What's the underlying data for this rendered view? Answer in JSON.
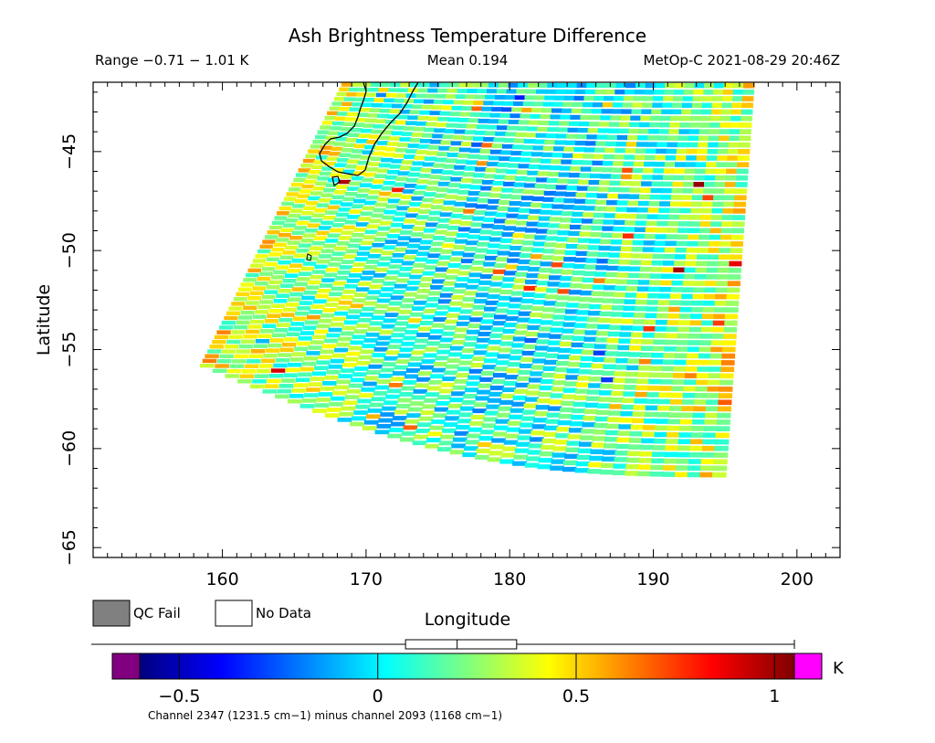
{
  "header": {
    "title": "Ash Brightness Temperature Difference",
    "range_label": "Range −0.71 − 1.01 K",
    "mean_label": "Mean 0.194",
    "satellite_time": "MetOp-C 2021-08-29 20:46Z"
  },
  "legend": {
    "qc_fail_label": "QC Fail",
    "no_data_label": "No Data",
    "qc_fail_color": "#808080",
    "no_data_color": "#ffffff"
  },
  "colorbar": {
    "unit": "K",
    "ticks": [
      {
        "value": -0.5,
        "label": "−0.5"
      },
      {
        "value": 0,
        "label": "0"
      },
      {
        "value": 0.5,
        "label": "0.5"
      },
      {
        "value": 1,
        "label": "1"
      }
    ],
    "range": [
      -0.6,
      1.05
    ],
    "stops": [
      "#00007f",
      "#0000ff",
      "#007fff",
      "#00ffff",
      "#7fff7f",
      "#ffff00",
      "#ff7f00",
      "#ff0000",
      "#7f0000"
    ],
    "underflow_color": "#800080",
    "overflow_color": "#ff00ff",
    "slider_range": [
      0.07,
      0.35
    ],
    "slider_mid": 0.2,
    "caption": "Channel 2347 (1231.5 cm−1) minus channel 2093 (1168 cm−1)"
  },
  "chart_data": {
    "type": "heatmap",
    "title": "Ash Brightness Temperature Difference",
    "xlabel": "Longitude",
    "ylabel": "Latitude",
    "xlim": [
      151,
      203
    ],
    "ylim": [
      -65.5,
      -41.5
    ],
    "xticks": [
      {
        "value": 160,
        "label": "160"
      },
      {
        "value": 170,
        "label": "170"
      },
      {
        "value": 180,
        "label": "180"
      },
      {
        "value": 190,
        "label": "190"
      },
      {
        "value": 200,
        "label": "200"
      }
    ],
    "yticks": [
      {
        "value": -45,
        "label": "−45"
      },
      {
        "value": -50,
        "label": "−50"
      },
      {
        "value": -55,
        "label": "−55"
      },
      {
        "value": -60,
        "label": "−60"
      },
      {
        "value": -65,
        "label": "−65"
      }
    ],
    "value_range": [
      -0.71,
      1.01
    ],
    "mean": 0.194,
    "units": "K",
    "swath_corners": {
      "top_left": [
        168.4,
        -41.5
      ],
      "top_right": [
        197.0,
        -41.5
      ],
      "bottom_right": [
        195.0,
        -61.5
      ],
      "bottom_left": [
        158.4,
        -55.8
      ]
    }
  }
}
